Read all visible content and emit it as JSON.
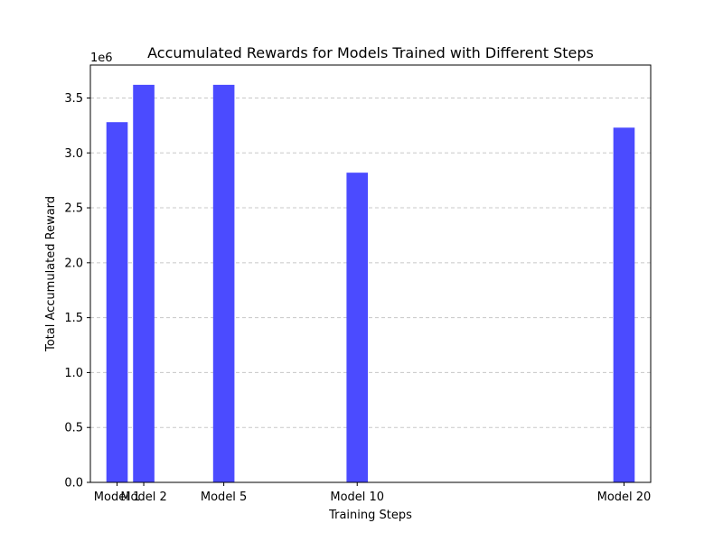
{
  "chart_data": {
    "type": "bar",
    "title": "Accumulated Rewards for Models Trained with Different Steps",
    "xlabel": "Training Steps",
    "ylabel": "Total Accumulated Reward",
    "y_offset_label": "1e6",
    "y_scale": 1000000,
    "x": [
      1,
      2,
      5,
      10,
      20
    ],
    "categories": [
      "Model 1",
      "Model 2",
      "Model 5",
      "Model 10",
      "Model 20"
    ],
    "values": [
      3280000,
      3620000,
      3620000,
      2820000,
      3230000
    ],
    "xlim": [
      0,
      21
    ],
    "ylim": [
      0,
      3800000
    ],
    "yticks": [
      0,
      500000,
      1000000,
      1500000,
      2000000,
      2500000,
      3000000,
      3500000
    ],
    "ytick_labels": [
      "0.0",
      "0.5",
      "1.0",
      "1.5",
      "2.0",
      "2.5",
      "3.0",
      "3.5"
    ],
    "bar_width": 0.8,
    "grid": "y",
    "grid_style": "dashed",
    "colors": {
      "bar": "#4b4bff",
      "grid": "#c8c8c8",
      "axis": "#000000"
    }
  }
}
